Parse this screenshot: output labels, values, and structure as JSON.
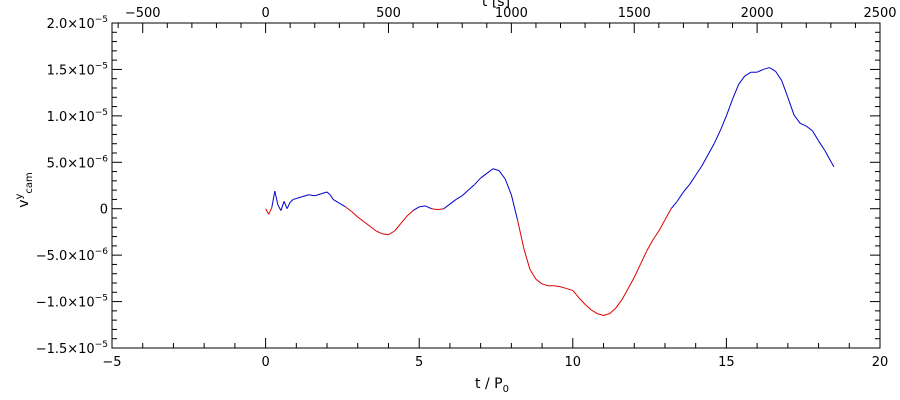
{
  "chart_data": {
    "type": "line",
    "xlabel": "t / P",
    "xlabel_sub": "0",
    "top_xlabel": "t [s]",
    "ylabel": "v",
    "ylabel_sup": "y",
    "ylabel_sub": "cam",
    "xlim": [
      -5,
      20
    ],
    "top_xlim": [
      -625,
      2500
    ],
    "ylim": [
      -1.5e-05,
      2e-05
    ],
    "x_ticks": [
      "−5",
      "0",
      "5",
      "10",
      "15",
      "20"
    ],
    "top_x_ticks": [
      "−500",
      "0",
      "500",
      "1000",
      "1500",
      "2000",
      "2500"
    ],
    "y_ticks": [
      {
        "value": -1.5e-05,
        "mantissa": "−1.5×10",
        "exp": "−5"
      },
      {
        "value": -1e-05,
        "mantissa": "−1.0×10",
        "exp": "−5"
      },
      {
        "value": -5e-06,
        "mantissa": "−5.0×10",
        "exp": "−6"
      },
      {
        "value": 0,
        "mantissa": "0",
        "exp": ""
      },
      {
        "value": 5e-06,
        "mantissa": "5.0×10",
        "exp": "−6"
      },
      {
        "value": 1e-05,
        "mantissa": "1.0×10",
        "exp": "−5"
      },
      {
        "value": 1.5e-05,
        "mantissa": "1.5×10",
        "exp": "−5"
      },
      {
        "value": 2e-05,
        "mantissa": "2.0×10",
        "exp": "−5"
      }
    ],
    "series_colors": {
      "positive": "#0000cc",
      "negative": "#dd0000"
    },
    "series": [
      {
        "x": [
          0.0,
          0.1,
          0.2,
          0.3,
          0.4,
          0.5,
          0.6,
          0.7,
          0.8,
          0.9,
          1.0,
          1.2,
          1.4,
          1.6,
          1.8,
          2.0,
          2.1,
          2.2,
          2.4,
          2.6,
          2.8,
          3.0,
          3.2,
          3.4,
          3.6,
          3.8,
          4.0,
          4.2,
          4.4,
          4.6,
          4.8,
          5.0,
          5.2,
          5.4,
          5.6,
          5.8,
          6.0,
          6.2,
          6.4,
          6.6,
          6.8,
          7.0,
          7.2,
          7.4,
          7.6,
          7.8,
          8.0,
          8.2,
          8.4,
          8.6,
          8.8,
          9.0,
          9.2,
          9.4,
          9.6,
          9.8,
          10.0,
          10.2,
          10.4,
          10.6,
          10.8,
          11.0,
          11.2,
          11.4,
          11.6,
          11.8,
          12.0,
          12.2,
          12.4,
          12.6,
          12.8,
          13.0,
          13.2,
          13.4,
          13.6,
          13.8,
          14.0,
          14.2,
          14.4,
          14.6,
          14.8,
          15.0,
          15.2,
          15.4,
          15.6,
          15.8,
          16.0,
          16.2,
          16.4,
          16.6,
          16.8,
          17.0,
          17.2,
          17.4,
          17.6,
          17.8,
          18.0,
          18.2,
          18.4,
          18.5
        ],
        "y": [
          0.0,
          -6e-07,
          1e-07,
          1.9e-06,
          4e-07,
          -2e-07,
          8e-07,
          0.0,
          7e-07,
          1e-06,
          1.1e-06,
          1.3e-06,
          1.5e-06,
          1.4e-06,
          1.6e-06,
          1.8e-06,
          1.5e-06,
          1e-06,
          6e-07,
          2e-07,
          -3e-07,
          -9e-07,
          -1.4e-06,
          -1.9e-06,
          -2.4e-06,
          -2.7e-06,
          -2.8e-06,
          -2.4e-06,
          -1.6e-06,
          -8e-07,
          -2e-07,
          2e-07,
          3e-07,
          0.0,
          -1e-07,
          0.0,
          5e-07,
          1e-06,
          1.4e-06,
          2e-06,
          2.6e-06,
          3.3e-06,
          3.8e-06,
          4.3e-06,
          4.1e-06,
          3.2e-06,
          1.5e-06,
          -1.2e-06,
          -4.2e-06,
          -6.5e-06,
          -7.6e-06,
          -8.1e-06,
          -8.3e-06,
          -8.3e-06,
          -8.4e-06,
          -8.6e-06,
          -8.8e-06,
          -9.6e-06,
          -1.03e-05,
          -1.09e-05,
          -1.13e-05,
          -1.15e-05,
          -1.13e-05,
          -1.07e-05,
          -9.8e-06,
          -8.6e-06,
          -7.4e-06,
          -6e-06,
          -4.6e-06,
          -3.4e-06,
          -2.4e-06,
          -1.2e-06,
          0.0,
          8e-07,
          1.8e-06,
          2.6e-06,
          3.6e-06,
          4.6e-06,
          5.8e-06,
          7e-06,
          8.4e-06,
          1e-05,
          1.18e-05,
          1.34e-05,
          1.43e-05,
          1.47e-05,
          1.47e-05,
          1.5e-05,
          1.52e-05,
          1.48e-05,
          1.38e-05,
          1.2e-05,
          1.01e-05,
          9.2e-06,
          8.9e-06,
          8.4e-06,
          7.3e-06,
          6.3e-06,
          5.1e-06,
          4.5e-06
        ]
      }
    ]
  }
}
